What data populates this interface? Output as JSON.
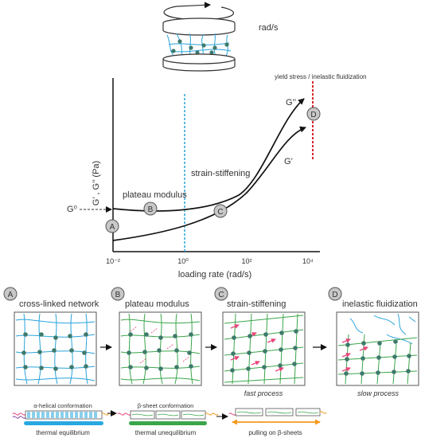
{
  "rheometer": {
    "speed_label": "rad/s"
  },
  "graph": {
    "y_axis_label": "G’ , G’’ (Pa)",
    "x_axis_label": "loading rate (rad/s)",
    "x_ticks": [
      "10⁻²",
      "10⁰",
      "10²",
      "10⁴"
    ],
    "g0_label": "G⁰",
    "yield_label": "yield stress / inelastic fluidization",
    "plateau_label": "plateau modulus",
    "stiffening_label": "strain-stiffening",
    "curve_g2_label": "G’’",
    "curve_g1_label": "G’",
    "points": [
      "A",
      "B",
      "C",
      "D"
    ]
  },
  "panels": [
    {
      "letter": "A",
      "title": "cross-linked network",
      "caption": ""
    },
    {
      "letter": "B",
      "title": "plateau modulus",
      "caption": ""
    },
    {
      "letter": "C",
      "title": "strain-stiffening",
      "caption": "fast process"
    },
    {
      "letter": "D",
      "title": "inelastic fluidization",
      "caption": "slow process"
    }
  ],
  "conformations": {
    "alpha_label": "α-helical conformation",
    "alpha_state": "thermal equilibrium",
    "beta_label": "β-sheet conformation",
    "beta_state": "thermal unequilibrium",
    "pull_label": "pulling on β-sheets"
  },
  "colors": {
    "network_blue": "#2aa3dc",
    "network_green": "#3aa64a",
    "node": "#3e7a6b",
    "arrow_pink": "#e8467a",
    "dashed_red": "#d8262b",
    "dashed_blue": "#2aa3dc",
    "orange": "#f29a1f",
    "bar_blue": "#29a8e0",
    "bar_green": "#3aa64a"
  }
}
